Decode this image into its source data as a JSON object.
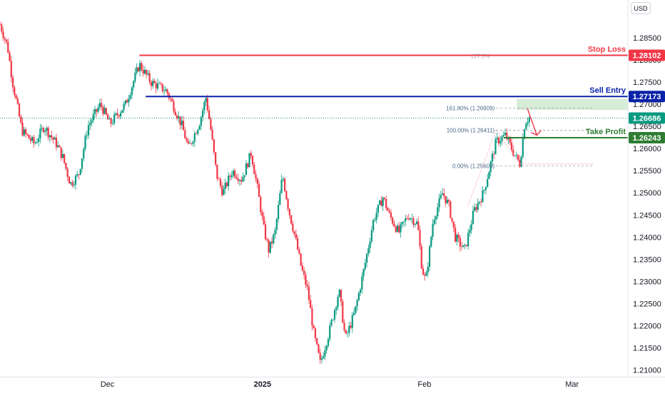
{
  "currency_badge": "USD",
  "chart_data": {
    "type": "candlestick",
    "title": "",
    "y_axis": {
      "range": [
        1.2085,
        1.2935
      ],
      "ticks": [
        "1.28500",
        "1.28000",
        "1.27500",
        "1.27000",
        "1.26500",
        "1.26000",
        "1.25500",
        "1.25000",
        "1.24500",
        "1.24000",
        "1.23500",
        "1.23000",
        "1.22500",
        "1.22000",
        "1.21500",
        "1.21000"
      ]
    },
    "x_axis": {
      "ticks": [
        {
          "label": "Dec",
          "pos": 0.171,
          "bold": false
        },
        {
          "label": "2025",
          "pos": 0.418,
          "bold": true
        },
        {
          "label": "Feb",
          "pos": 0.676,
          "bold": false
        },
        {
          "label": "Mar",
          "pos": 0.911,
          "bold": false
        }
      ]
    },
    "levels": [
      {
        "name": "Stop Loss",
        "price": 1.28102,
        "label": "1.28102",
        "color": "#f23645",
        "from": 0.222
      },
      {
        "name": "Sell Entry",
        "price": 1.27173,
        "label": "1.27173",
        "color": "#0a22a8",
        "from": 0.232
      },
      {
        "name": "Take Profit",
        "price": 1.26243,
        "label": "1.26243",
        "color": "#2e7d32",
        "from": 0.802
      }
    ],
    "current_price": {
      "price": 1.26686,
      "label": "1.26686",
      "color": "#089981"
    },
    "fibonacci": [
      {
        "label": "161.80% (1.26909)",
        "price": 1.26909
      },
      {
        "label": "100.00% (1.26411)",
        "price": 1.26411
      },
      {
        "label": "0.00% (1.25609)",
        "price": 1.25609
      }
    ],
    "stop_loss_fib_label": "127.2%",
    "sell_zone": {
      "top": 1.2712,
      "bottom": 1.2687
    },
    "colors": {
      "up": "#089981",
      "down": "#f23645",
      "axis_text": "#131722"
    },
    "anchors": [
      [
        0.0,
        1.288
      ],
      [
        0.012,
        1.283
      ],
      [
        0.02,
        1.275
      ],
      [
        0.035,
        1.264
      ],
      [
        0.055,
        1.261
      ],
      [
        0.07,
        1.265
      ],
      [
        0.09,
        1.261
      ],
      [
        0.1,
        1.258
      ],
      [
        0.112,
        1.252
      ],
      [
        0.125,
        1.254
      ],
      [
        0.14,
        1.265
      ],
      [
        0.16,
        1.27
      ],
      [
        0.175,
        1.2655
      ],
      [
        0.2,
        1.27
      ],
      [
        0.222,
        1.279
      ],
      [
        0.24,
        1.275
      ],
      [
        0.265,
        1.273
      ],
      [
        0.275,
        1.27
      ],
      [
        0.29,
        1.265
      ],
      [
        0.3,
        1.26
      ],
      [
        0.318,
        1.266
      ],
      [
        0.328,
        1.2715
      ],
      [
        0.335,
        1.265
      ],
      [
        0.345,
        1.254
      ],
      [
        0.355,
        1.25
      ],
      [
        0.37,
        1.255
      ],
      [
        0.385,
        1.253
      ],
      [
        0.4,
        1.259
      ],
      [
        0.41,
        1.251
      ],
      [
        0.42,
        1.242
      ],
      [
        0.428,
        1.237
      ],
      [
        0.438,
        1.241
      ],
      [
        0.45,
        1.254
      ],
      [
        0.46,
        1.246
      ],
      [
        0.47,
        1.24
      ],
      [
        0.48,
        1.233
      ],
      [
        0.49,
        1.228
      ],
      [
        0.5,
        1.218
      ],
      [
        0.51,
        1.2115
      ],
      [
        0.525,
        1.219
      ],
      [
        0.54,
        1.228
      ],
      [
        0.55,
        1.217
      ],
      [
        0.565,
        1.223
      ],
      [
        0.58,
        1.233
      ],
      [
        0.595,
        1.244
      ],
      [
        0.61,
        1.249
      ],
      [
        0.62,
        1.245
      ],
      [
        0.635,
        1.241
      ],
      [
        0.65,
        1.245
      ],
      [
        0.665,
        1.243
      ],
      [
        0.672,
        1.233
      ],
      [
        0.678,
        1.23
      ],
      [
        0.69,
        1.244
      ],
      [
        0.705,
        1.25
      ],
      [
        0.715,
        1.247
      ],
      [
        0.725,
        1.24
      ],
      [
        0.74,
        1.237
      ],
      [
        0.755,
        1.246
      ],
      [
        0.77,
        1.25
      ],
      [
        0.79,
        1.2615
      ],
      [
        0.805,
        1.263
      ],
      [
        0.818,
        1.259
      ],
      [
        0.828,
        1.2565
      ],
      [
        0.836,
        1.266
      ],
      [
        0.843,
        1.267
      ]
    ]
  }
}
